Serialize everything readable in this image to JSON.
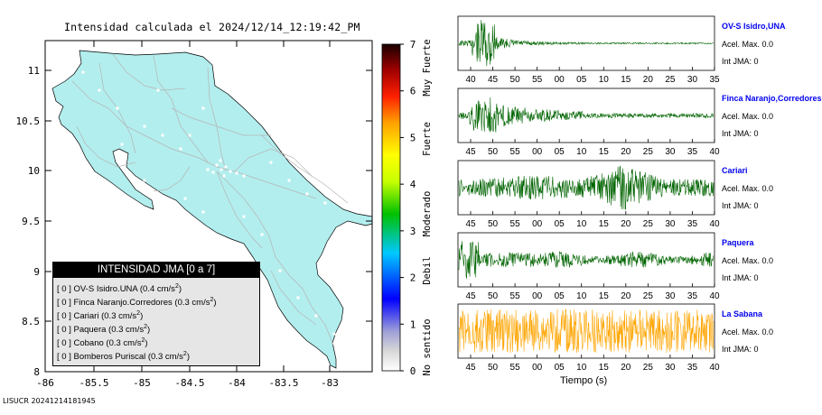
{
  "map": {
    "title": "Intensidad calculada el 2024/12/14_12:19:42_PM",
    "xticks": [
      "-86",
      "-85.5",
      "-85",
      "-84.5",
      "-84",
      "-83.5",
      "-83"
    ],
    "yticks": [
      "11",
      "10.5",
      "10",
      "9.5",
      "9",
      "8.5",
      "8"
    ],
    "land_color": "#b3eeee",
    "road_color": "#b4b4b4"
  },
  "colorbar": {
    "ticks": [
      "0",
      "1",
      "2",
      "3",
      "4",
      "5",
      "6",
      "7"
    ],
    "categories": [
      "No sentido",
      "Debil",
      "Moderado",
      "Fuerte",
      "Muy Fuerte"
    ]
  },
  "legend": {
    "title": "INTENSIDAD JMA [0 a 7]",
    "items": [
      {
        "jma": "[ 0 ]",
        "station": "OV-S Isidro.UNA",
        "accel": "(0.4 cm/s",
        "unit_sup": "2",
        "close": ")"
      },
      {
        "jma": "[ 0 ]",
        "station": "Finca Naranjo.Corredores",
        "accel": "(0.3 cm/s",
        "unit_sup": "2",
        "close": ")"
      },
      {
        "jma": "[ 0 ]",
        "station": "Cariari",
        "accel": "(0.3 cm/s",
        "unit_sup": "2",
        "close": ")"
      },
      {
        "jma": "[ 0 ]",
        "station": "Paquera",
        "accel": "(0.3 cm/s",
        "unit_sup": "2",
        "close": ")"
      },
      {
        "jma": "[ 0 ]",
        "station": "Cobano",
        "accel": "(0.3 cm/s",
        "unit_sup": "2",
        "close": ")"
      },
      {
        "jma": "[ 0 ]",
        "station": "Bomberos Puriscal",
        "accel": "(0.3 cm/s",
        "unit_sup": "2",
        "close": ")"
      }
    ]
  },
  "stations": [
    {
      "name": "OV-S Isidro,UNA",
      "accel": "Acel. Max. 0.0",
      "jma": "Int JMA: 0",
      "color": "#006400",
      "xticks": [
        "40",
        "45",
        "50",
        "55",
        "00",
        "05",
        "10",
        "15",
        "20",
        "25",
        "30",
        "35"
      ],
      "profile": "early"
    },
    {
      "name": "Finca Naranjo,Corredores",
      "accel": "Acel. Max. 0.0",
      "jma": "Int JMA: 0",
      "color": "#006400",
      "xticks": [
        "45",
        "50",
        "55",
        "00",
        "05",
        "10",
        "15",
        "20",
        "25",
        "30",
        "35",
        "40"
      ],
      "profile": "early2"
    },
    {
      "name": "Cariari",
      "accel": "Acel. Max. 0.0",
      "jma": "Int JMA: 0",
      "color": "#006400",
      "xticks": [
        "45",
        "50",
        "55",
        "00",
        "05",
        "10",
        "15",
        "20",
        "25",
        "30",
        "35",
        "40"
      ],
      "profile": "late"
    },
    {
      "name": "Paquera",
      "accel": "Acel. Max. 0.0",
      "jma": "Int JMA: 0",
      "color": "#006400",
      "xticks": [
        "45",
        "50",
        "55",
        "00",
        "05",
        "10",
        "15",
        "20",
        "25",
        "30",
        "35",
        "40"
      ],
      "profile": "start"
    },
    {
      "name": "La Sabana",
      "accel": "Acel. Max. 0.0",
      "jma": "Int JMA: 0",
      "color": "#ffa500",
      "xticks": [
        "45",
        "50",
        "55",
        "00",
        "05",
        "10",
        "15",
        "20",
        "25",
        "30",
        "35",
        "40"
      ],
      "profile": "noise"
    }
  ],
  "xlabel": "Tiempo (s)",
  "footer": "LISUCR 20241214181945",
  "chart_data": [
    {
      "type": "heatmap",
      "title": "Intensidad calculada el 2024/12/14_12:19:42_PM",
      "xlim": [
        -86,
        -82.6
      ],
      "ylim": [
        8,
        11.3
      ],
      "colorbar_range": [
        0,
        7
      ],
      "stations": [
        {
          "name": "OV-S Isidro.UNA",
          "jma": 0,
          "accel_cm_s2": 0.4
        },
        {
          "name": "Finca Naranjo.Corredores",
          "jma": 0,
          "accel_cm_s2": 0.3
        },
        {
          "name": "Cariari",
          "jma": 0,
          "accel_cm_s2": 0.3
        },
        {
          "name": "Paquera",
          "jma": 0,
          "accel_cm_s2": 0.3
        },
        {
          "name": "Cobano",
          "jma": 0,
          "accel_cm_s2": 0.3
        },
        {
          "name": "Bomberos Puriscal",
          "jma": 0,
          "accel_cm_s2": 0.3
        }
      ]
    },
    {
      "type": "line",
      "xlabel": "Tiempo (s)",
      "series": [
        {
          "name": "OV-S Isidro,UNA",
          "acel_max": 0.0,
          "int_jma": 0
        },
        {
          "name": "Finca Naranjo,Corredores",
          "acel_max": 0.0,
          "int_jma": 0
        },
        {
          "name": "Cariari",
          "acel_max": 0.0,
          "int_jma": 0
        },
        {
          "name": "Paquera",
          "acel_max": 0.0,
          "int_jma": 0
        },
        {
          "name": "La Sabana",
          "acel_max": 0.0,
          "int_jma": 0
        }
      ]
    }
  ]
}
